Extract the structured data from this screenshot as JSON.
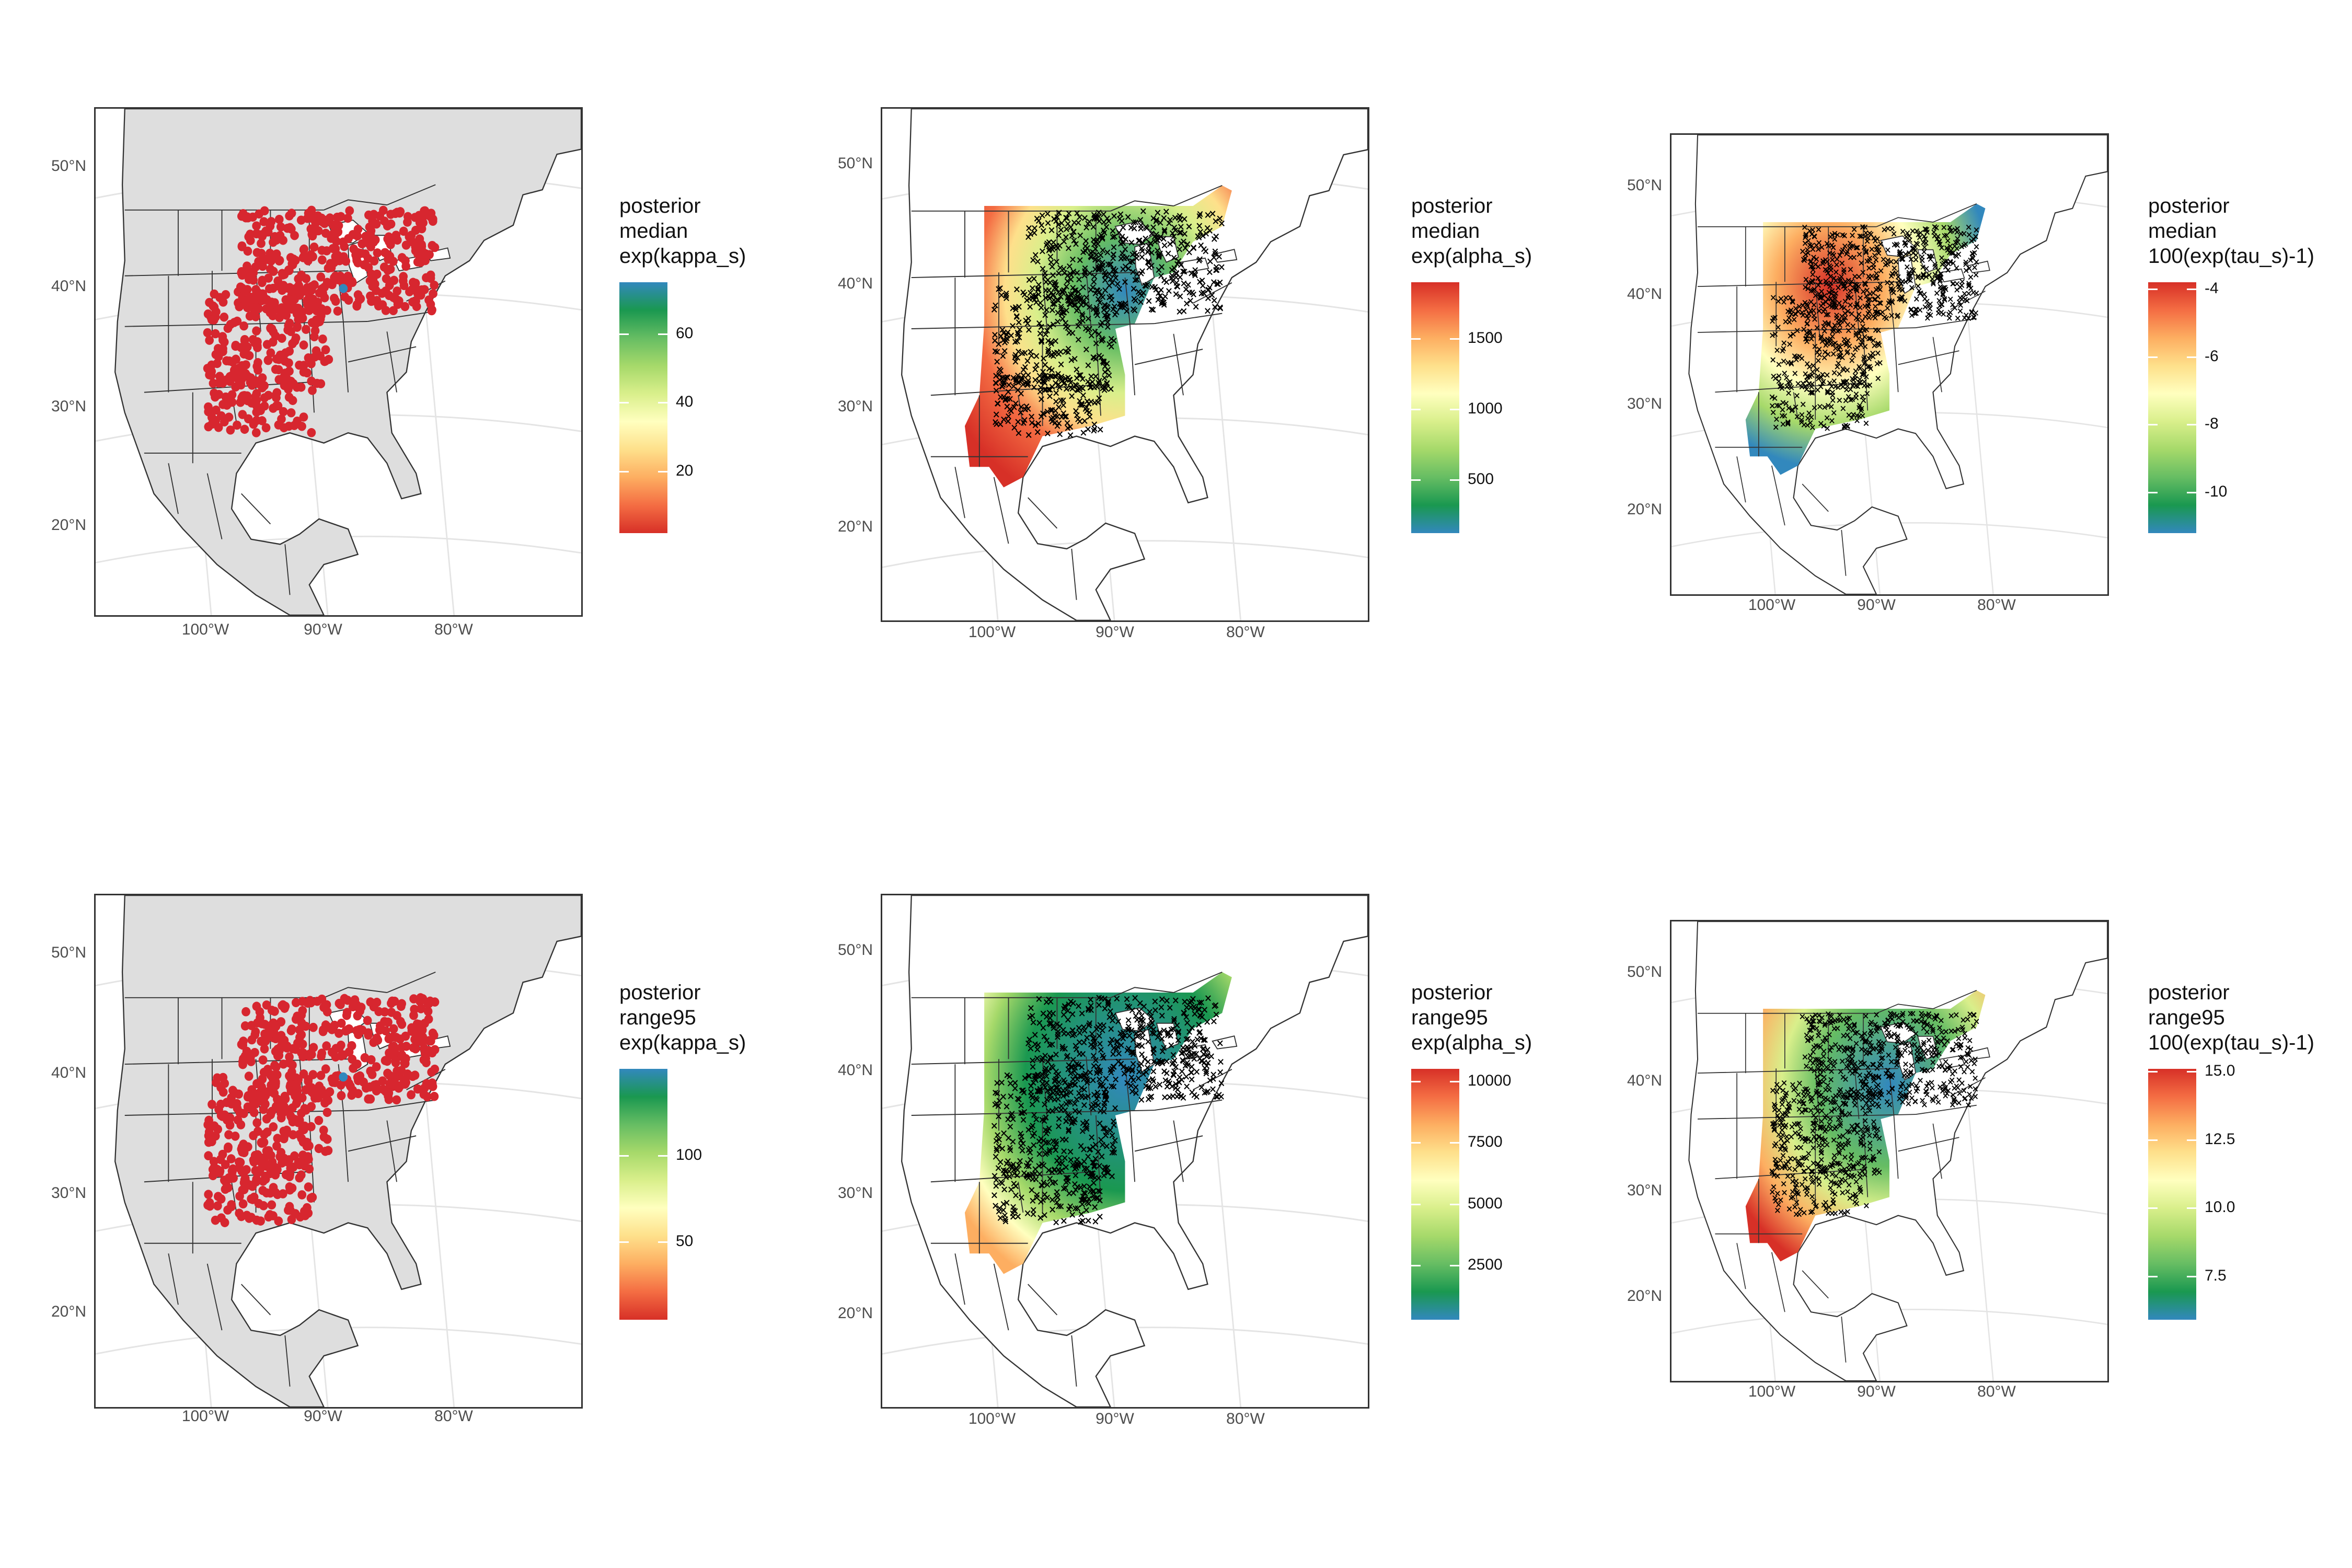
{
  "palette": [
    "#d73027",
    "#f46d43",
    "#fdae61",
    "#fee08b",
    "#ffffbf",
    "#d9ef8b",
    "#a6d96a",
    "#66bd63",
    "#1a9850",
    "#3288bd"
  ],
  "map_colors": {
    "land": "#dedede",
    "border": "#333333",
    "graticule": "#e4e4e4",
    "water": "#ffffff",
    "points": "#d7262f",
    "crosses": "#000000"
  },
  "panels": [
    {
      "id": "kappa-median",
      "kind": "points",
      "lat_labels": [
        "50°N",
        "40°N",
        "30°N",
        "20°N"
      ],
      "lon_labels": [
        "100°W",
        "90°W",
        "80°W"
      ],
      "legend": {
        "title": [
          "posterior",
          "median",
          "exp(kappa_s)"
        ],
        "ticks": [
          "60",
          "40",
          "20"
        ],
        "tick_values": [
          60,
          40,
          20
        ],
        "min": 2,
        "max": 75
      }
    },
    {
      "id": "alpha-median",
      "kind": "surface",
      "lat_labels": [
        "50°N",
        "40°N",
        "30°N",
        "20°N"
      ],
      "lon_labels": [
        "100°W",
        "90°W",
        "80°W"
      ],
      "legend": {
        "title": [
          "posterior",
          "median",
          "exp(alpha_s)"
        ],
        "ticks": [
          "1500",
          "1000",
          "500"
        ],
        "tick_values": [
          1500,
          1000,
          500
        ],
        "min": 120,
        "max": 1900
      }
    },
    {
      "id": "tau-median",
      "kind": "surface",
      "lat_labels": [
        "50°N",
        "40°N",
        "30°N",
        "20°N"
      ],
      "lon_labels": [
        "100°W",
        "90°W",
        "80°W"
      ],
      "legend": {
        "title": [
          "posterior",
          "median",
          "100(exp(tau_s)-1)"
        ],
        "ticks": [
          "-4",
          "-6",
          "-8",
          "-10"
        ],
        "tick_values": [
          -4,
          -6,
          -8,
          -10
        ],
        "min": -11.2,
        "max": -3.8
      }
    },
    {
      "id": "kappa-range95",
      "kind": "points",
      "lat_labels": [
        "50°N",
        "40°N",
        "30°N",
        "20°N"
      ],
      "lon_labels": [
        "100°W",
        "90°W",
        "80°W"
      ],
      "legend": {
        "title": [
          "posterior",
          "range95",
          "exp(kappa_s)"
        ],
        "ticks": [
          "100",
          "50"
        ],
        "tick_values": [
          100,
          50
        ],
        "min": 5,
        "max": 150
      }
    },
    {
      "id": "alpha-range95",
      "kind": "surface",
      "lat_labels": [
        "50°N",
        "40°N",
        "30°N",
        "20°N"
      ],
      "lon_labels": [
        "100°W",
        "90°W",
        "80°W"
      ],
      "legend": {
        "title": [
          "posterior",
          "range95",
          "exp(alpha_s)"
        ],
        "ticks": [
          "10000",
          "7500",
          "5000",
          "2500"
        ],
        "tick_values": [
          10000,
          7500,
          5000,
          2500
        ],
        "min": 300,
        "max": 10500
      }
    },
    {
      "id": "tau-range95",
      "kind": "surface",
      "lat_labels": [
        "50°N",
        "40°N",
        "30°N",
        "20°N"
      ],
      "lon_labels": [
        "100°W",
        "90°W",
        "80°W"
      ],
      "legend": {
        "title": [
          "posterior",
          "range95",
          "100(exp(tau_s)-1)"
        ],
        "ticks": [
          "15.0",
          "12.5",
          "10.0",
          "7.5"
        ],
        "tick_values": [
          15.0,
          12.5,
          10.0,
          7.5
        ],
        "min": 5.9,
        "max": 15.1
      }
    }
  ]
}
